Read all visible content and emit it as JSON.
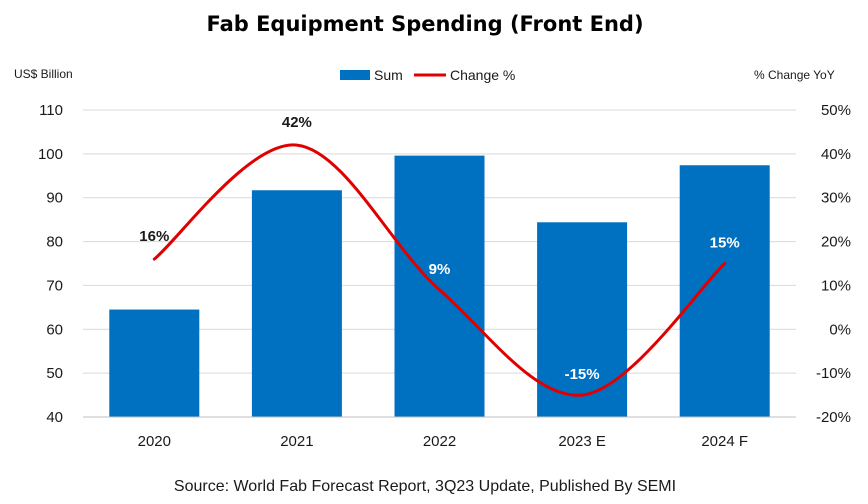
{
  "chart_data": {
    "type": "bar",
    "title": "Fab Equipment Spending (Front End)",
    "ylabel_left": "US$ Billion",
    "ylabel_right": "% Change YoY",
    "source": "Source: World Fab Forecast Report, 3Q23 Update, Published By SEMI",
    "categories": [
      "2020",
      "2021",
      "2022",
      "2023 E",
      "2024 F"
    ],
    "ylim": [
      40,
      110
    ],
    "y_ticks": [
      "110",
      "100",
      "90",
      "80",
      "70",
      "60",
      "50",
      "40"
    ],
    "y2lim": [
      -20,
      50
    ],
    "y2_ticks": [
      "50%",
      "40%",
      "30%",
      "20%",
      "10%",
      "0%",
      "-10%",
      "-20%"
    ],
    "legend_position": "top-center",
    "grid": true,
    "series": [
      {
        "name": "Sum",
        "kind": "bar",
        "axis": "left",
        "color": "#0070C0",
        "values": [
          64.5,
          91.7,
          99.6,
          84.4,
          97.4
        ]
      },
      {
        "name": "Change %",
        "kind": "line",
        "axis": "right",
        "color": "#E00000",
        "values": [
          16,
          42,
          9,
          -15,
          15
        ],
        "labels": [
          "16%",
          "42%",
          "9%",
          "-15%",
          "15%"
        ]
      }
    ]
  }
}
